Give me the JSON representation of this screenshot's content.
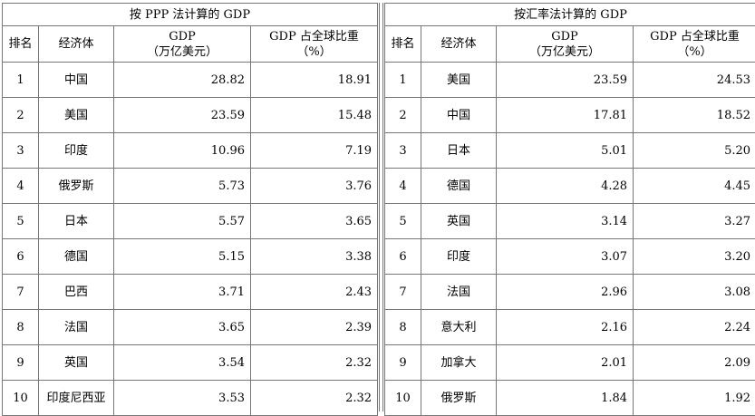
{
  "ppp": {
    "title": "按 PPP 法计算的 GDP",
    "headers": {
      "rank": "排名",
      "economy": "经济体",
      "gdp": "GDP\n（万亿美元）",
      "share": "GDP 占全球比重\n（%）"
    },
    "rows": [
      {
        "rank": "1",
        "economy": "中国",
        "gdp": "28.82",
        "share": "18.91"
      },
      {
        "rank": "2",
        "economy": "美国",
        "gdp": "23.59",
        "share": "15.48"
      },
      {
        "rank": "3",
        "economy": "印度",
        "gdp": "10.96",
        "share": "7.19"
      },
      {
        "rank": "4",
        "economy": "俄罗斯",
        "gdp": "5.73",
        "share": "3.76"
      },
      {
        "rank": "5",
        "economy": "日本",
        "gdp": "5.57",
        "share": "3.65"
      },
      {
        "rank": "6",
        "economy": "德国",
        "gdp": "5.15",
        "share": "3.38"
      },
      {
        "rank": "7",
        "economy": "巴西",
        "gdp": "3.71",
        "share": "2.43"
      },
      {
        "rank": "8",
        "economy": "法国",
        "gdp": "3.65",
        "share": "2.39"
      },
      {
        "rank": "9",
        "economy": "英国",
        "gdp": "3.54",
        "share": "2.32"
      },
      {
        "rank": "10",
        "economy": "印度尼西亚",
        "gdp": "3.53",
        "share": "2.32"
      }
    ]
  },
  "fx": {
    "title": "按汇率法计算的 GDP",
    "headers": {
      "rank": "排名",
      "economy": "经济体",
      "gdp": "GDP\n（万亿美元）",
      "share": "GDP 占全球比重\n（%）"
    },
    "rows": [
      {
        "rank": "1",
        "economy": "美国",
        "gdp": "23.59",
        "share": "24.53"
      },
      {
        "rank": "2",
        "economy": "中国",
        "gdp": "17.81",
        "share": "18.52"
      },
      {
        "rank": "3",
        "economy": "日本",
        "gdp": "5.01",
        "share": "5.20"
      },
      {
        "rank": "4",
        "economy": "德国",
        "gdp": "4.28",
        "share": "4.45"
      },
      {
        "rank": "5",
        "economy": "英国",
        "gdp": "3.14",
        "share": "3.27"
      },
      {
        "rank": "6",
        "economy": "印度",
        "gdp": "3.07",
        "share": "3.20"
      },
      {
        "rank": "7",
        "economy": "法国",
        "gdp": "2.96",
        "share": "3.08"
      },
      {
        "rank": "8",
        "economy": "意大利",
        "gdp": "2.16",
        "share": "2.24"
      },
      {
        "rank": "9",
        "economy": "加拿大",
        "gdp": "2.01",
        "share": "2.09"
      },
      {
        "rank": "10",
        "economy": "俄罗斯",
        "gdp": "1.84",
        "share": "1.92"
      }
    ]
  }
}
